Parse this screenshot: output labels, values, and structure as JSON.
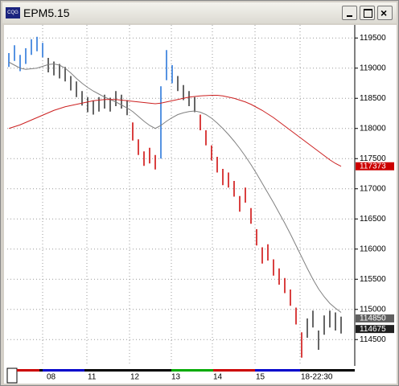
{
  "window": {
    "app_icon": "CQG",
    "title": "EPM5.15"
  },
  "chart_data": {
    "type": "ohlc",
    "high": [
      119250,
      119380,
      119220,
      119330,
      119480,
      119520,
      119420,
      119170,
      119110,
      119070,
      119020,
      118870,
      118780,
      118620,
      118520,
      118460,
      118520,
      118560,
      118510,
      118620,
      118560,
      118470,
      118100,
      117820,
      117620,
      117680,
      117560,
      118700,
      119300,
      119050,
      118870,
      118720,
      118620,
      118520,
      118230,
      117970,
      117720,
      117530,
      117330,
      117270,
      117130,
      116880,
      117020,
      116680,
      116330,
      116030,
      116080,
      115830,
      115680,
      115520,
      115330,
      115030,
      114620,
      114850,
      114980,
      114650,
      114900,
      114980,
      114950,
      114880
    ],
    "low": [
      119020,
      119120,
      118950,
      119070,
      119220,
      119280,
      119180,
      118930,
      118880,
      118830,
      118780,
      118630,
      118520,
      118380,
      118270,
      118230,
      118280,
      118330,
      118280,
      118370,
      118330,
      118220,
      117800,
      117560,
      117380,
      117420,
      117320,
      117500,
      118800,
      118750,
      118620,
      118470,
      118370,
      118270,
      117970,
      117720,
      117470,
      117270,
      117060,
      117020,
      116870,
      116620,
      116770,
      116420,
      116060,
      115760,
      115810,
      115560,
      115410,
      115270,
      115060,
      114750,
      114200,
      114530,
      114700,
      114330,
      114580,
      114700,
      114650,
      114600
    ],
    "colors": [
      "#1e6fd9",
      "#1e6fd9",
      "#1e6fd9",
      "#1e6fd9",
      "#1e6fd9",
      "#1e6fd9",
      "#1e6fd9",
      "#333333",
      "#333333",
      "#333333",
      "#333333",
      "#333333",
      "#333333",
      "#333333",
      "#333333",
      "#333333",
      "#333333",
      "#333333",
      "#333333",
      "#333333",
      "#333333",
      "#333333",
      "#cc0000",
      "#cc0000",
      "#cc0000",
      "#cc0000",
      "#cc0000",
      "#1e6fd9",
      "#1e6fd9",
      "#1e6fd9",
      "#333333",
      "#333333",
      "#333333",
      "#333333",
      "#cc0000",
      "#cc0000",
      "#cc0000",
      "#cc0000",
      "#cc0000",
      "#cc0000",
      "#cc0000",
      "#cc0000",
      "#cc0000",
      "#cc0000",
      "#cc0000",
      "#cc0000",
      "#cc0000",
      "#cc0000",
      "#cc0000",
      "#cc0000",
      "#cc0000",
      "#cc0000",
      "#cc0000",
      "#333333",
      "#333333",
      "#333333",
      "#333333",
      "#333333",
      "#333333",
      "#333333"
    ],
    "series": [
      {
        "color": "#808080",
        "values": [
          119100,
          119050,
          119000,
          118980,
          118990,
          119000,
          119030,
          119060,
          119070,
          119050,
          119000,
          118920,
          118830,
          118750,
          118680,
          118620,
          118570,
          118520,
          118480,
          118440,
          118390,
          118340,
          118280,
          118200,
          118120,
          118050,
          118000,
          118050,
          118120,
          118180,
          118230,
          118260,
          118280,
          118290,
          118270,
          118230,
          118170,
          118090,
          118000,
          117900,
          117790,
          117670,
          117540,
          117400,
          117250,
          117090,
          116930,
          116770,
          116600,
          116430,
          116250,
          116060,
          115870,
          115680,
          115500,
          115340,
          115210,
          115100,
          115020,
          114950
        ]
      },
      {
        "color": "#cc2020",
        "values": [
          118000,
          118030,
          118060,
          118100,
          118140,
          118180,
          118220,
          118260,
          118300,
          118330,
          118360,
          118380,
          118400,
          118420,
          118440,
          118460,
          118470,
          118480,
          118480,
          118480,
          118470,
          118460,
          118450,
          118440,
          118430,
          118420,
          118410,
          118420,
          118440,
          118460,
          118480,
          118500,
          118520,
          118530,
          118540,
          118545,
          118550,
          118550,
          118540,
          118520,
          118500,
          118470,
          118440,
          118400,
          118350,
          118300,
          118240,
          118180,
          118110,
          118040,
          117970,
          117900,
          117830,
          117760,
          117690,
          117620,
          117550,
          117480,
          117420,
          117373
        ]
      }
    ],
    "ylim": [
      114050,
      119650
    ],
    "yticks": [
      114500,
      115000,
      115500,
      116000,
      116500,
      117000,
      117500,
      118000,
      118500,
      119000,
      119500
    ],
    "grid": true,
    "price_markers": [
      {
        "value": 117373,
        "color": "#cc0000"
      },
      {
        "value": 114850,
        "color": "#606060"
      },
      {
        "value": 114675,
        "color": "#202020"
      }
    ],
    "x_labels": [
      "08",
      "11",
      "12",
      "13",
      "14",
      "15",
      "18-22:30"
    ]
  }
}
